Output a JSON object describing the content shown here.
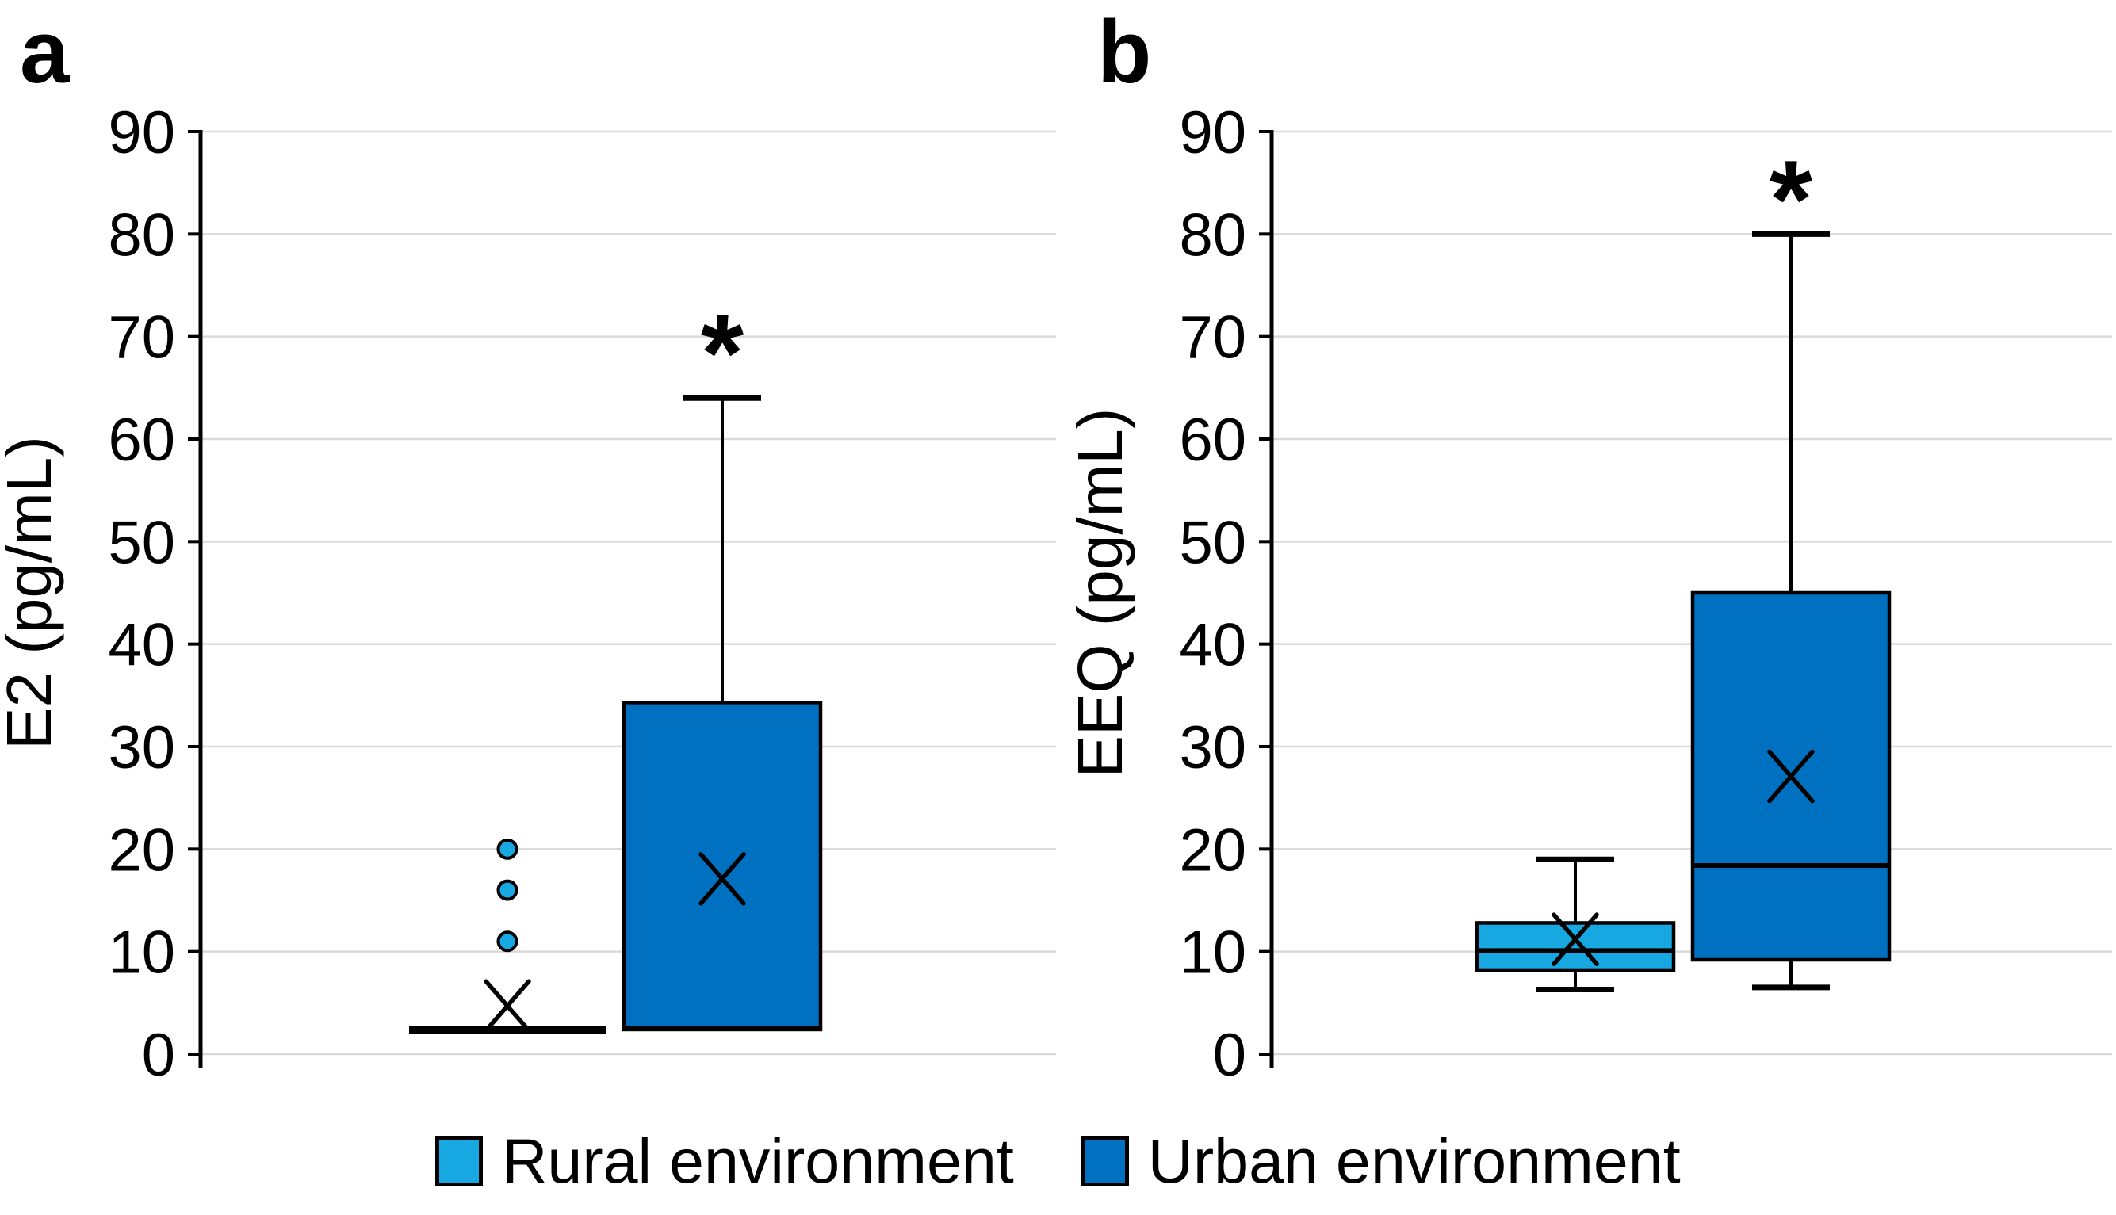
{
  "figure": {
    "background": "#ffffff"
  },
  "colors": {
    "rural": "#17A8E2",
    "urban": "#0071C0",
    "box_border": "#000000",
    "gridline": "#D9D9D9",
    "axis": "#000000",
    "text": "#000000"
  },
  "panels": [
    {
      "label": "a"
    },
    {
      "label": "b"
    }
  ],
  "legend": {
    "items": [
      {
        "label": "Rural environment",
        "color_key": "rural"
      },
      {
        "label": "Urban environment",
        "color_key": "urban"
      }
    ]
  },
  "chart_data": [
    {
      "type": "box",
      "panel": "a",
      "title": "",
      "xlabel": "",
      "ylabel": "E2 (pg/mL)",
      "ylim": [
        0,
        90
      ],
      "ytick_step": 10,
      "grid": true,
      "groups": [
        {
          "name": "Rural environment",
          "color_key": "rural",
          "min": 2.4,
          "q1": 2.4,
          "median": 2.4,
          "q3": 2.4,
          "max": 2.4,
          "mean": 4.7,
          "outliers": [
            11,
            16,
            20
          ],
          "significance": null
        },
        {
          "name": "Urban environment",
          "color_key": "urban",
          "min": 2.4,
          "q1": 2.4,
          "median": 2.5,
          "q3": 34.3,
          "max": 64,
          "mean": 17.1,
          "outliers": [],
          "significance": {
            "symbol": "*",
            "y": 70
          }
        }
      ]
    },
    {
      "type": "box",
      "panel": "b",
      "title": "",
      "xlabel": "",
      "ylabel": "EEQ (pg/mL)",
      "ylim": [
        0,
        90
      ],
      "ytick_step": 10,
      "grid": true,
      "groups": [
        {
          "name": "Rural environment",
          "color_key": "rural",
          "min": 6.3,
          "q1": 8.2,
          "median": 10.1,
          "q3": 12.8,
          "max": 19,
          "mean": 11.2,
          "outliers": [],
          "significance": null
        },
        {
          "name": "Urban environment",
          "color_key": "urban",
          "min": 6.5,
          "q1": 9.2,
          "median": 18.4,
          "q3": 45,
          "max": 80,
          "mean": 27.1,
          "outliers": [],
          "significance": {
            "symbol": "*",
            "y": 85
          }
        }
      ]
    }
  ]
}
